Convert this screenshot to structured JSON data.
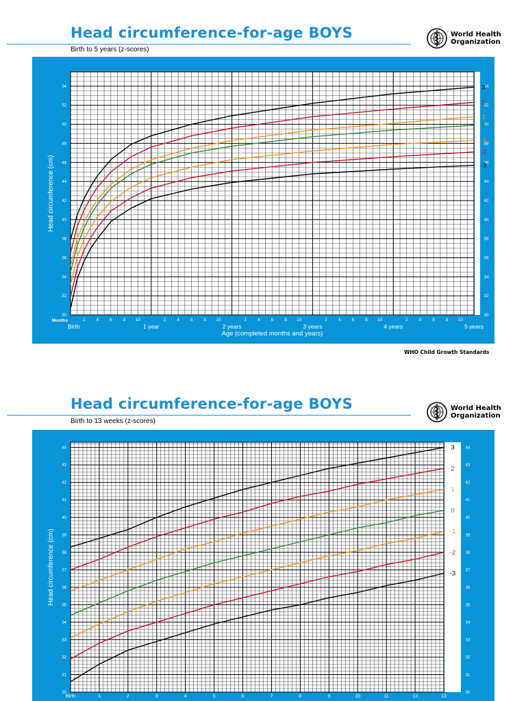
{
  "colors": {
    "title_blue": "#1a8fd4",
    "panel_blue": "#0b95d9",
    "z3": "#000000",
    "z2": "#c8102e",
    "z1": "#f7941d",
    "z0": "#2e8b3a",
    "zn1": "#f7941d",
    "zn2": "#c8102e",
    "zn3": "#000000"
  },
  "who": {
    "line1": "World Health",
    "line2": "Organization",
    "emblem": "who-emblem-icon"
  },
  "footer": "WHO Child Growth Standards",
  "chart_data": [
    {
      "type": "line",
      "title": "Head circumference-for-age  BOYS",
      "subtitle": "Birth to 5 years (z-scores)",
      "ylabel": "Head circumference (cm)",
      "xlabel": "Age (completed months and years)",
      "x_unit": "months",
      "xlim": [
        0,
        60
      ],
      "ylim": [
        30,
        55.5
      ],
      "yticks": [
        30,
        32,
        34,
        36,
        38,
        40,
        42,
        44,
        46,
        48,
        50,
        52,
        54
      ],
      "months_label": "Months",
      "minor_ticks": [
        "2",
        "4",
        "6",
        "8",
        "10"
      ],
      "year_labels": [
        "Birth",
        "1 year",
        "2 years",
        "3 years",
        "4 years",
        "5 years"
      ],
      "x": [
        0,
        1,
        2,
        3,
        4,
        6,
        9,
        12,
        18,
        24,
        36,
        48,
        60
      ],
      "series": [
        {
          "name": "3",
          "color_key": "z3",
          "values": [
            37.9,
            40.5,
            42.2,
            43.5,
            44.6,
            46.3,
            47.9,
            48.8,
            50.0,
            50.9,
            52.2,
            53.2,
            53.9
          ]
        },
        {
          "name": "2",
          "color_key": "z2",
          "values": [
            36.5,
            39.3,
            41.0,
            42.3,
            43.4,
            45.0,
            46.6,
            47.6,
            48.8,
            49.6,
            50.8,
            51.6,
            52.3
          ]
        },
        {
          "name": "1",
          "color_key": "z1",
          "values": [
            35.1,
            38.0,
            39.7,
            41.0,
            42.1,
            43.7,
            45.3,
            46.3,
            47.5,
            48.3,
            49.4,
            50.1,
            50.8
          ]
        },
        {
          "name": "0",
          "color_key": "z0",
          "values": [
            34.5,
            37.3,
            39.1,
            40.5,
            41.6,
            43.3,
            44.8,
            45.8,
            47.0,
            47.7,
            48.7,
            49.4,
            49.9
          ]
        },
        {
          "name": "-1",
          "color_key": "zn1",
          "values": [
            33.2,
            36.1,
            37.9,
            39.2,
            40.3,
            41.9,
            43.4,
            44.4,
            45.5,
            46.3,
            47.2,
            47.9,
            48.3
          ]
        },
        {
          "name": "-2",
          "color_key": "zn2",
          "values": [
            31.9,
            34.9,
            36.8,
            38.1,
            39.2,
            40.9,
            42.3,
            43.3,
            44.4,
            45.1,
            46.0,
            46.6,
            47.1
          ]
        },
        {
          "name": "-3",
          "color_key": "zn3",
          "values": [
            30.7,
            33.8,
            35.6,
            37.0,
            38.0,
            39.8,
            41.2,
            42.2,
            43.2,
            43.9,
            44.8,
            45.3,
            45.7
          ]
        }
      ]
    },
    {
      "type": "line",
      "title": "Head circumference-for-age  BOYS",
      "subtitle": "Birth to 13 weeks (z-scores)",
      "ylabel": "Head circumference (cm)",
      "xlabel": "",
      "x_unit": "weeks",
      "xlim": [
        0,
        13
      ],
      "ylim": [
        30,
        44.3
      ],
      "yticks": [
        30,
        31,
        32,
        33,
        34,
        35,
        36,
        37,
        38,
        39,
        40,
        41,
        42,
        43,
        44
      ],
      "xtick_labels": [
        "Birth",
        "1",
        "2",
        "3",
        "4",
        "5",
        "6",
        "7",
        "8",
        "9",
        "10",
        "11",
        "12",
        "13"
      ],
      "x": [
        0,
        1,
        2,
        3,
        4,
        5,
        6,
        7,
        8,
        9,
        10,
        11,
        12,
        13
      ],
      "series": [
        {
          "name": "3",
          "color_key": "z3",
          "values": [
            38.3,
            38.8,
            39.3,
            40.0,
            40.6,
            41.1,
            41.6,
            42.0,
            42.4,
            42.8,
            43.1,
            43.4,
            43.7,
            44.0
          ]
        },
        {
          "name": "2",
          "color_key": "z2",
          "values": [
            37.0,
            37.6,
            38.3,
            38.9,
            39.4,
            39.9,
            40.3,
            40.8,
            41.2,
            41.5,
            41.9,
            42.2,
            42.5,
            42.8
          ]
        },
        {
          "name": "1",
          "color_key": "z1",
          "values": [
            35.8,
            36.4,
            37.0,
            37.6,
            38.2,
            38.6,
            39.1,
            39.5,
            39.9,
            40.3,
            40.6,
            41.0,
            41.3,
            41.6
          ]
        },
        {
          "name": "0",
          "color_key": "z0",
          "values": [
            34.4,
            35.1,
            35.8,
            36.4,
            36.9,
            37.4,
            37.8,
            38.2,
            38.6,
            39.0,
            39.4,
            39.7,
            40.1,
            40.4
          ]
        },
        {
          "name": "-1",
          "color_key": "zn1",
          "values": [
            33.1,
            33.9,
            34.6,
            35.2,
            35.7,
            36.2,
            36.6,
            37.0,
            37.4,
            37.8,
            38.1,
            38.5,
            38.8,
            39.2
          ]
        },
        {
          "name": "-2",
          "color_key": "zn2",
          "values": [
            31.9,
            32.8,
            33.5,
            34.0,
            34.5,
            35.0,
            35.4,
            35.8,
            36.2,
            36.6,
            36.9,
            37.3,
            37.6,
            38.0
          ]
        },
        {
          "name": "-3",
          "color_key": "zn3",
          "values": [
            30.6,
            31.6,
            32.4,
            32.9,
            33.4,
            33.9,
            34.3,
            34.7,
            35.0,
            35.4,
            35.7,
            36.1,
            36.4,
            36.8
          ]
        }
      ]
    }
  ]
}
